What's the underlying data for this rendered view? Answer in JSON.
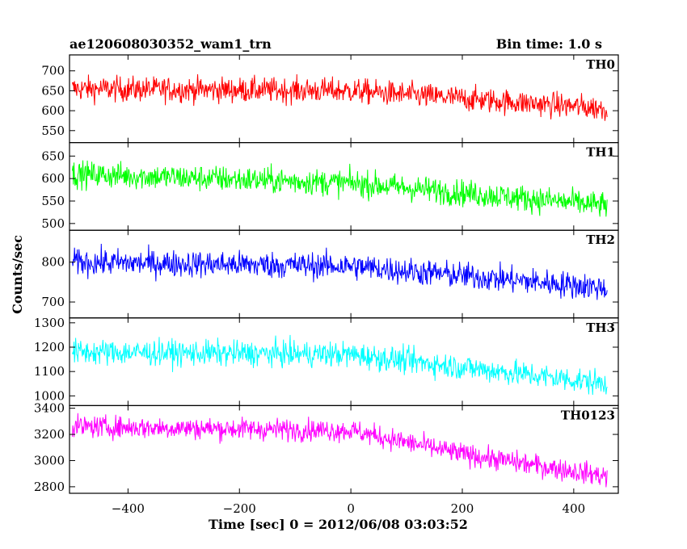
{
  "header": {
    "title": "ae120608030352_wam1_trn",
    "bin_time": "Bin time: 1.0 s"
  },
  "chart_data": {
    "type": "line",
    "xlabel": "Time [sec] 0 = 2012/06/08 03:03:52",
    "ylabel": "Counts/sec",
    "xlim": [
      -505,
      480
    ],
    "x_ticks": [
      -400,
      -200,
      0,
      200,
      400
    ],
    "x_tick_labels": [
      "−400",
      "−200",
      "0",
      "200",
      "400"
    ],
    "x_start": -500,
    "x_end": 460,
    "panels": [
      {
        "name": "TH0",
        "color": "#ff0000",
        "ylim": [
          520,
          740
        ],
        "y_ticks": [
          550,
          600,
          650,
          700
        ],
        "y_tick_labels": [
          "550",
          "600",
          "650",
          "700"
        ],
        "trend": [
          [
            -500,
            655
          ],
          [
            0,
            650
          ],
          [
            460,
            605
          ]
        ],
        "noise": 30
      },
      {
        "name": "TH1",
        "color": "#00ff00",
        "ylim": [
          485,
          680
        ],
        "y_ticks": [
          500,
          550,
          600,
          650
        ],
        "y_tick_labels": [
          "500",
          "550",
          "600",
          "650"
        ],
        "trend": [
          [
            -500,
            610
          ],
          [
            0,
            590
          ],
          [
            460,
            540
          ]
        ],
        "noise": 28
      },
      {
        "name": "TH2",
        "color": "#0000ff",
        "ylim": [
          660,
          880
        ],
        "y_ticks": [
          700,
          800
        ],
        "y_tick_labels": [
          "700",
          "800"
        ],
        "trend": [
          [
            -500,
            800
          ],
          [
            0,
            790
          ],
          [
            460,
            735
          ]
        ],
        "noise": 32
      },
      {
        "name": "TH3",
        "color": "#00ffff",
        "ylim": [
          960,
          1320
        ],
        "y_ticks": [
          1000,
          1100,
          1200,
          1300
        ],
        "y_tick_labels": [
          "1000",
          "1100",
          "1200",
          "1300"
        ],
        "trend": [
          [
            -500,
            1180
          ],
          [
            0,
            1170
          ],
          [
            460,
            1050
          ]
        ],
        "noise": 50
      },
      {
        "name": "TH0123",
        "color": "#ff00ff",
        "ylim": [
          2750,
          3420
        ],
        "y_ticks": [
          2800,
          3000,
          3200,
          3400
        ],
        "y_tick_labels": [
          "2800",
          "3000",
          "3200",
          "3400"
        ],
        "trend": [
          [
            -500,
            3260
          ],
          [
            0,
            3230
          ],
          [
            200,
            3050
          ],
          [
            460,
            2880
          ]
        ],
        "noise": 80
      }
    ]
  }
}
